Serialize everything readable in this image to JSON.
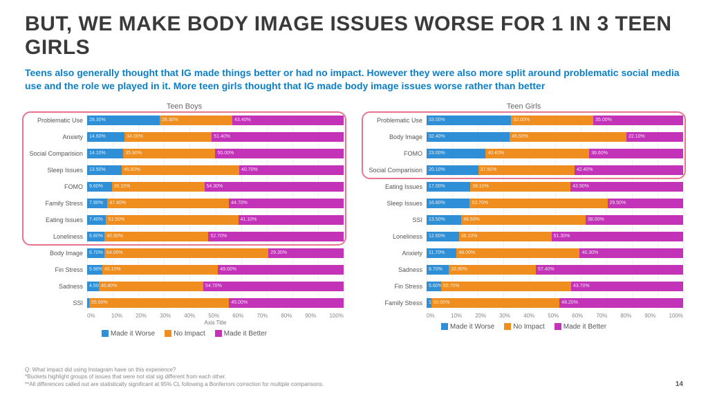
{
  "title": "BUT, WE MAKE BODY IMAGE ISSUES WORSE FOR 1 IN 3 TEEN GIRLS",
  "title_fontsize": 30,
  "subtitle": "Teens also generally thought that IG made things better or had no impact. However they were also more split around problematic social media use and the role we played in it. More teen girls thought that IG made body image issues worse rather than better",
  "subtitle_fontsize": 14,
  "colors": {
    "worse": "#2f8fd6",
    "no_impact": "#ef8d1f",
    "better": "#c233b8",
    "highlight_border": "#e8738e"
  },
  "legend": {
    "worse": "Made it Worse",
    "no_impact": "No Impact",
    "better": "Made it Better"
  },
  "xaxis": {
    "ticks": [
      "0%",
      "10%",
      "20%",
      "30%",
      "40%",
      "50%",
      "60%",
      "70%",
      "80%",
      "90%",
      "100%"
    ],
    "min": 0,
    "max": 100
  },
  "charts": [
    {
      "title": "Teen Boys",
      "axis_title": "Axis Title",
      "highlight_rows": [
        0,
        7
      ],
      "rows": [
        {
          "label": "Problematic Use",
          "worse": 28.3,
          "no_impact": 28.3,
          "better": 43.4
        },
        {
          "label": "Anxiety",
          "worse": 14.6,
          "no_impact": 34.0,
          "better": 51.4
        },
        {
          "label": "Social Comparision",
          "worse": 14.1,
          "no_impact": 35.9,
          "better": 50.0
        },
        {
          "label": "Sleep Issues",
          "worse": 13.5,
          "no_impact": 45.8,
          "better": 40.7
        },
        {
          "label": "FOMO",
          "worse": 9.6,
          "no_impact": 36.1,
          "better": 54.3
        },
        {
          "label": "Family Stress",
          "worse": 7.9,
          "no_impact": 47.4,
          "better": 44.7
        },
        {
          "label": "Eating Issues",
          "worse": 7.4,
          "no_impact": 51.5,
          "better": 41.1
        },
        {
          "label": "Loneliness",
          "worse": 6.8,
          "no_impact": 40.5,
          "better": 52.7
        },
        {
          "label": "Body Image",
          "worse": 6.7,
          "no_impact": 64.0,
          "better": 29.3
        },
        {
          "label": "Fin Stress",
          "worse": 5.9,
          "no_impact": 45.1,
          "better": 49.0
        },
        {
          "label": "Sadness",
          "worse": 4.5,
          "no_impact": 40.8,
          "better": 54.7
        },
        {
          "label": "SSI",
          "worse": 0.0,
          "no_impact": 55.0,
          "better": 45.0
        }
      ]
    },
    {
      "title": "Teen Girls",
      "axis_title": "",
      "highlight_rows": [
        0,
        3
      ],
      "rows": [
        {
          "label": "Problematic Use",
          "worse": 33.0,
          "no_impact": 32.0,
          "better": 35.0
        },
        {
          "label": "Body Image",
          "worse": 32.4,
          "no_impact": 45.5,
          "better": 22.1
        },
        {
          "label": "FOMO",
          "worse": 23.0,
          "no_impact": 40.4,
          "better": 36.6
        },
        {
          "label": "Social Comparision",
          "worse": 20.1,
          "no_impact": 37.5,
          "better": 42.4
        },
        {
          "label": "Eating Issues",
          "worse": 17.0,
          "no_impact": 39.1,
          "better": 43.9
        },
        {
          "label": "Sleep Issues",
          "worse": 16.8,
          "no_impact": 53.7,
          "better": 29.5
        },
        {
          "label": "SSI",
          "worse": 13.5,
          "no_impact": 48.5,
          "better": 38.0
        },
        {
          "label": "Loneliness",
          "worse": 12.6,
          "no_impact": 36.1,
          "better": 51.3
        },
        {
          "label": "Anxiety",
          "worse": 11.7,
          "no_impact": 48.0,
          "better": 40.3
        },
        {
          "label": "Sadness",
          "worse": 8.7,
          "no_impact": 33.9,
          "better": 57.4
        },
        {
          "label": "Fin Stress",
          "worse": 5.6,
          "no_impact": 50.7,
          "better": 43.7
        },
        {
          "label": "Family Stress",
          "worse": 1.8,
          "no_impact": 50.0,
          "better": 48.2
        }
      ]
    }
  ],
  "footnotes": [
    "Q: What impact did using Instagram have on this experience?",
    "*Buckets highlight groups of issues that were not stat sig different from each other.",
    "**All differences called out are statistically significant at 95% CL following a Bonferroni correction for multiple comparisons."
  ],
  "page_number": "14",
  "label_fontsize": 9,
  "tick_fontsize": 8,
  "legend_fontsize": 10,
  "footnote_fontsize": 8,
  "chart_title_fontsize": 11
}
